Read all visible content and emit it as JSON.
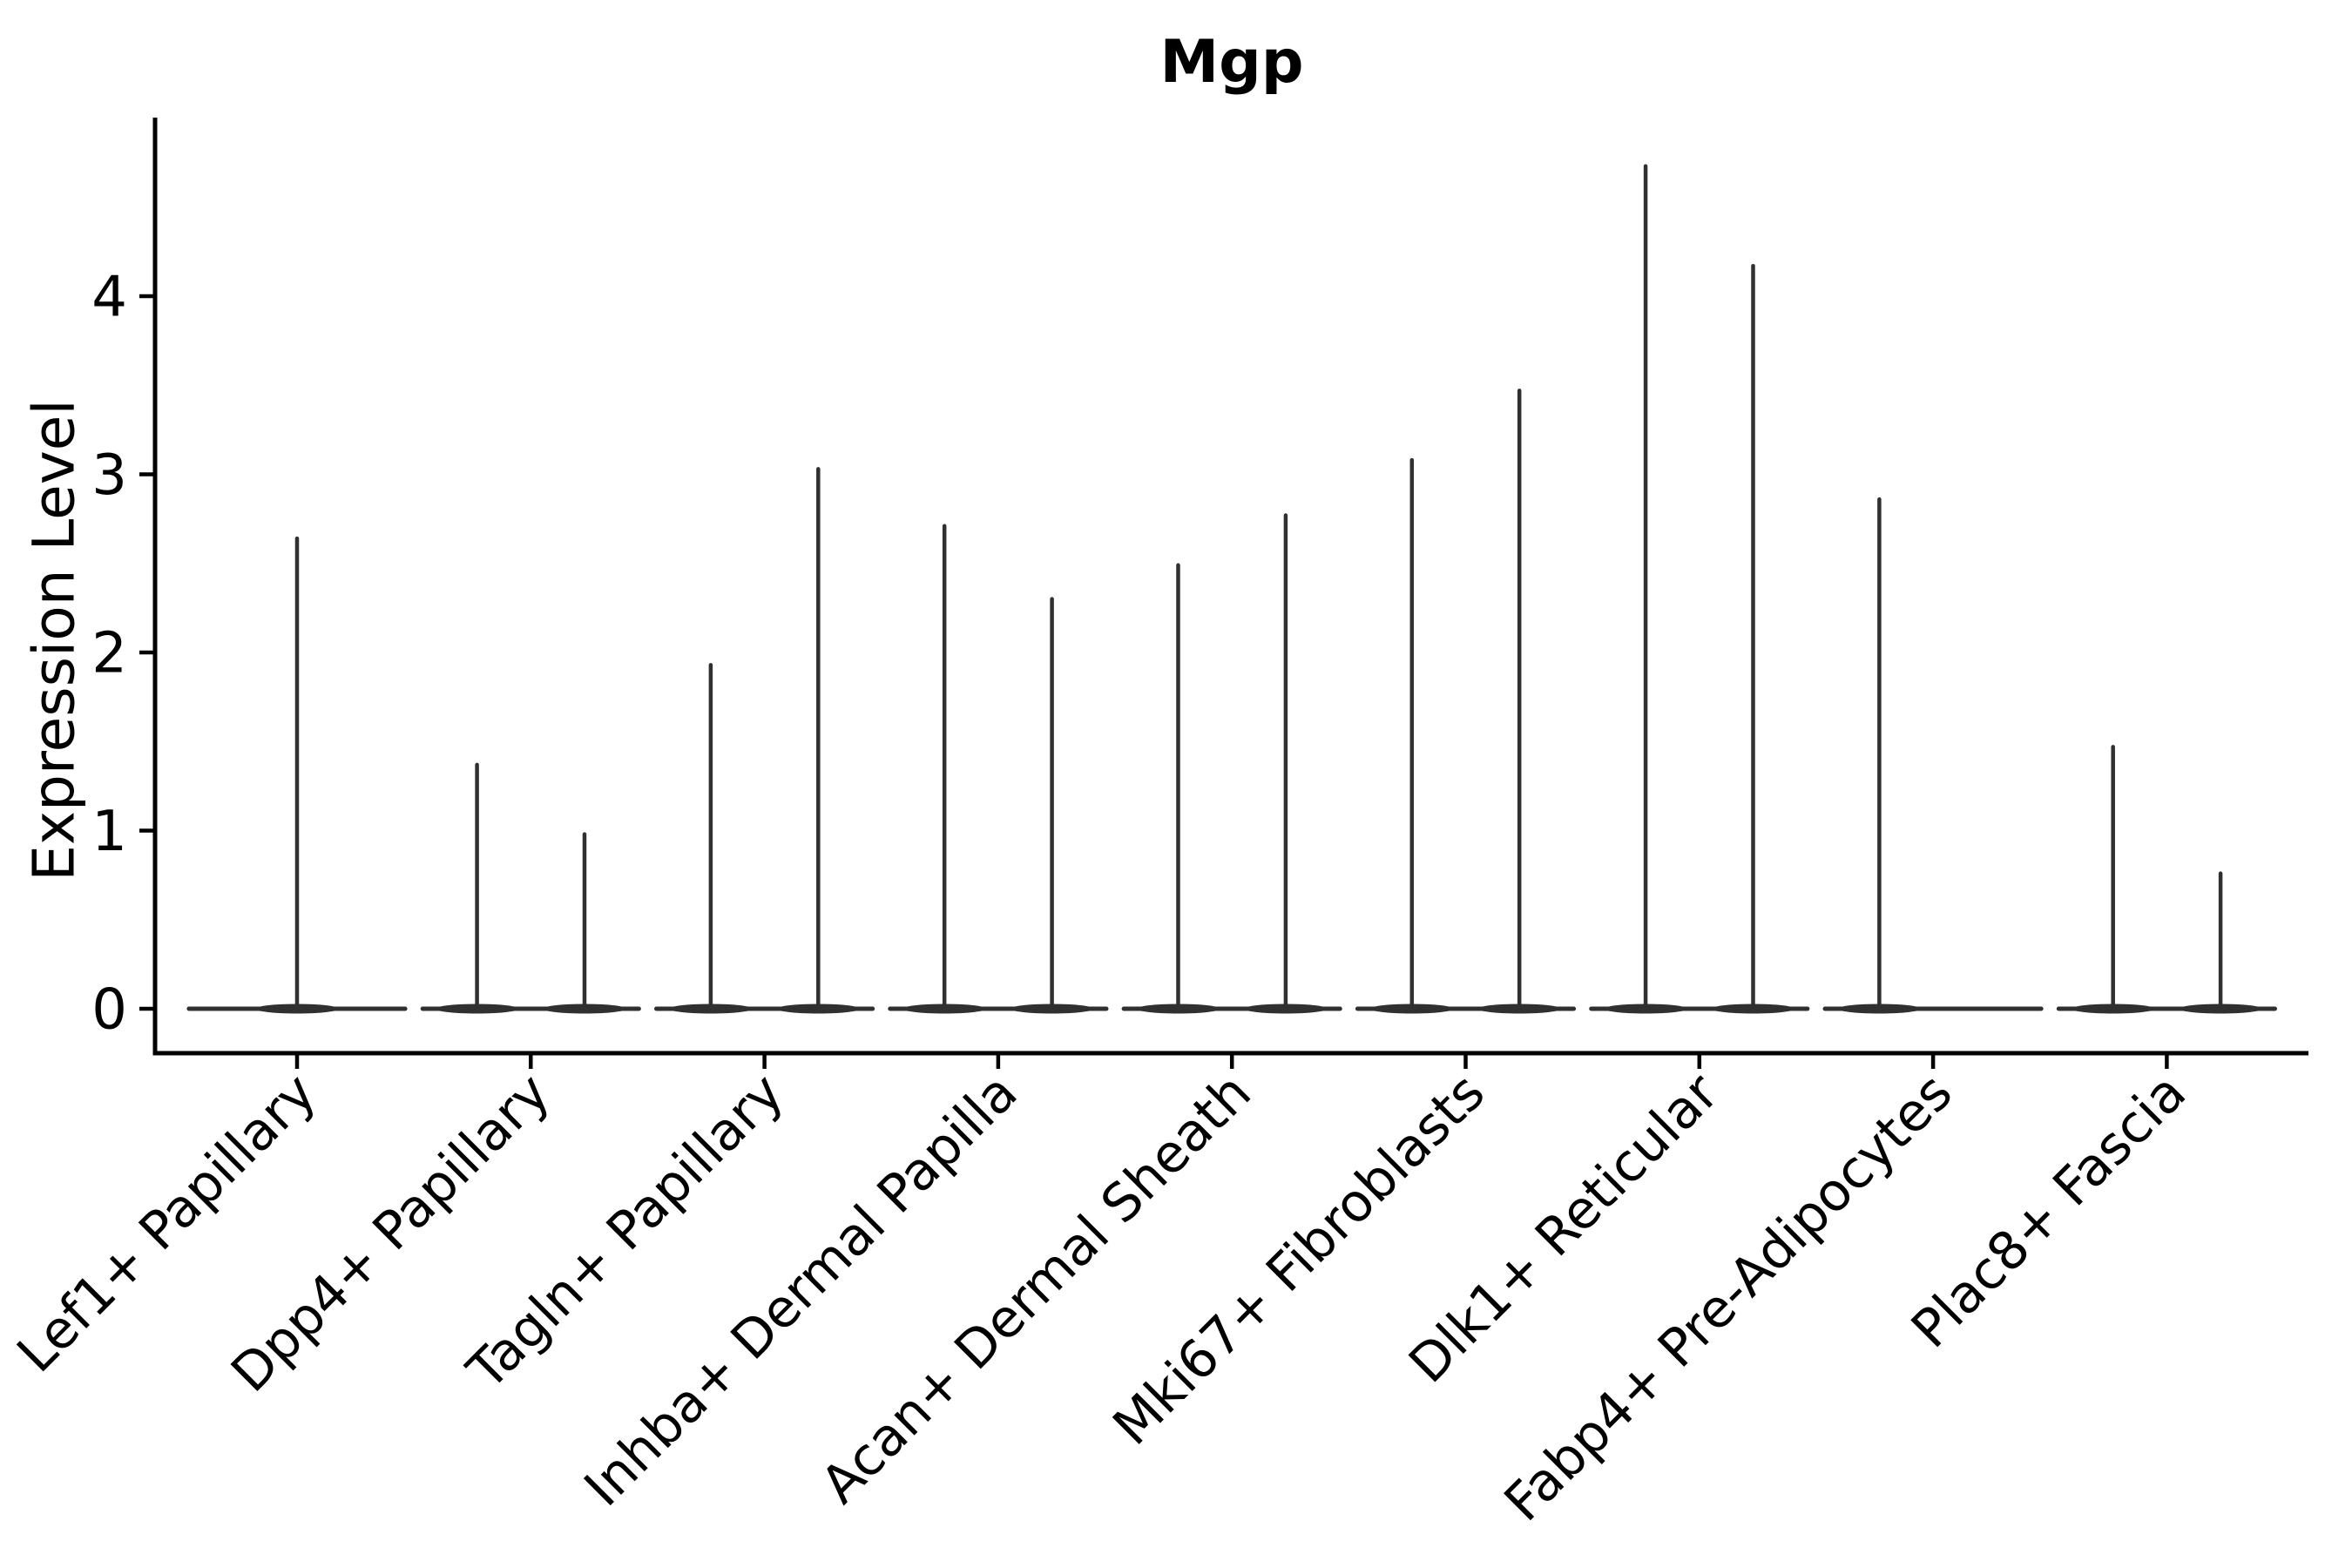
{
  "title": "Mgp",
  "ylabel": "Expression Level",
  "colors": {
    "violin": "#303030",
    "axis": "#000000",
    "text": "#000000",
    "background": "#ffffff"
  },
  "chart_data": {
    "type": "violin",
    "title": "Mgp",
    "xlabel": "",
    "ylabel": "Expression Level",
    "yticks": [
      0,
      1,
      2,
      3,
      4
    ],
    "ylim": [
      -0.25,
      5.0
    ],
    "grid": false,
    "legend": "none",
    "categories": [
      "Lef1+ Papillary",
      "Dpp4+ Papillary",
      "Tagln+ Papillary",
      "Inhba+ Dermal Papilla",
      "Acan+ Dermal Sheath",
      "Mki67+ Fibroblasts",
      "Dlk1+ Reticular",
      "Fabp4+ Pre-Adipocytes",
      "Plac8+ Fascia"
    ],
    "violins": [
      {
        "category": "Lef1+ Papillary",
        "spikes": [
          {
            "offset": 0.0,
            "max": 2.64
          }
        ]
      },
      {
        "category": "Dpp4+ Papillary",
        "spikes": [
          {
            "offset": -0.23,
            "max": 1.37
          },
          {
            "offset": 0.23,
            "max": 0.98
          }
        ]
      },
      {
        "category": "Tagln+ Papillary",
        "spikes": [
          {
            "offset": -0.23,
            "max": 1.93
          },
          {
            "offset": 0.23,
            "max": 3.03
          }
        ]
      },
      {
        "category": "Inhba+ Dermal Papilla",
        "spikes": [
          {
            "offset": -0.23,
            "max": 2.71
          },
          {
            "offset": 0.23,
            "max": 2.3
          }
        ]
      },
      {
        "category": "Acan+ Dermal Sheath",
        "spikes": [
          {
            "offset": -0.23,
            "max": 2.49
          },
          {
            "offset": 0.23,
            "max": 2.77
          }
        ]
      },
      {
        "category": "Mki67+ Fibroblasts",
        "spikes": [
          {
            "offset": -0.23,
            "max": 3.08
          },
          {
            "offset": 0.23,
            "max": 3.47
          }
        ]
      },
      {
        "category": "Dlk1+ Reticular",
        "spikes": [
          {
            "offset": -0.23,
            "max": 4.73
          },
          {
            "offset": 0.23,
            "max": 4.17
          }
        ]
      },
      {
        "category": "Fabp4+ Pre-Adipocytes",
        "spikes": [
          {
            "offset": -0.23,
            "max": 2.86
          }
        ]
      },
      {
        "category": "Plac8+ Fascia",
        "spikes": [
          {
            "offset": -0.23,
            "max": 1.47
          },
          {
            "offset": 0.23,
            "max": 0.76
          }
        ]
      }
    ],
    "body_halfwidth_fraction": 0.4625,
    "note_style": "violins are near-zero-width: wide flat body at 0 with hairline tails up to max expression"
  }
}
